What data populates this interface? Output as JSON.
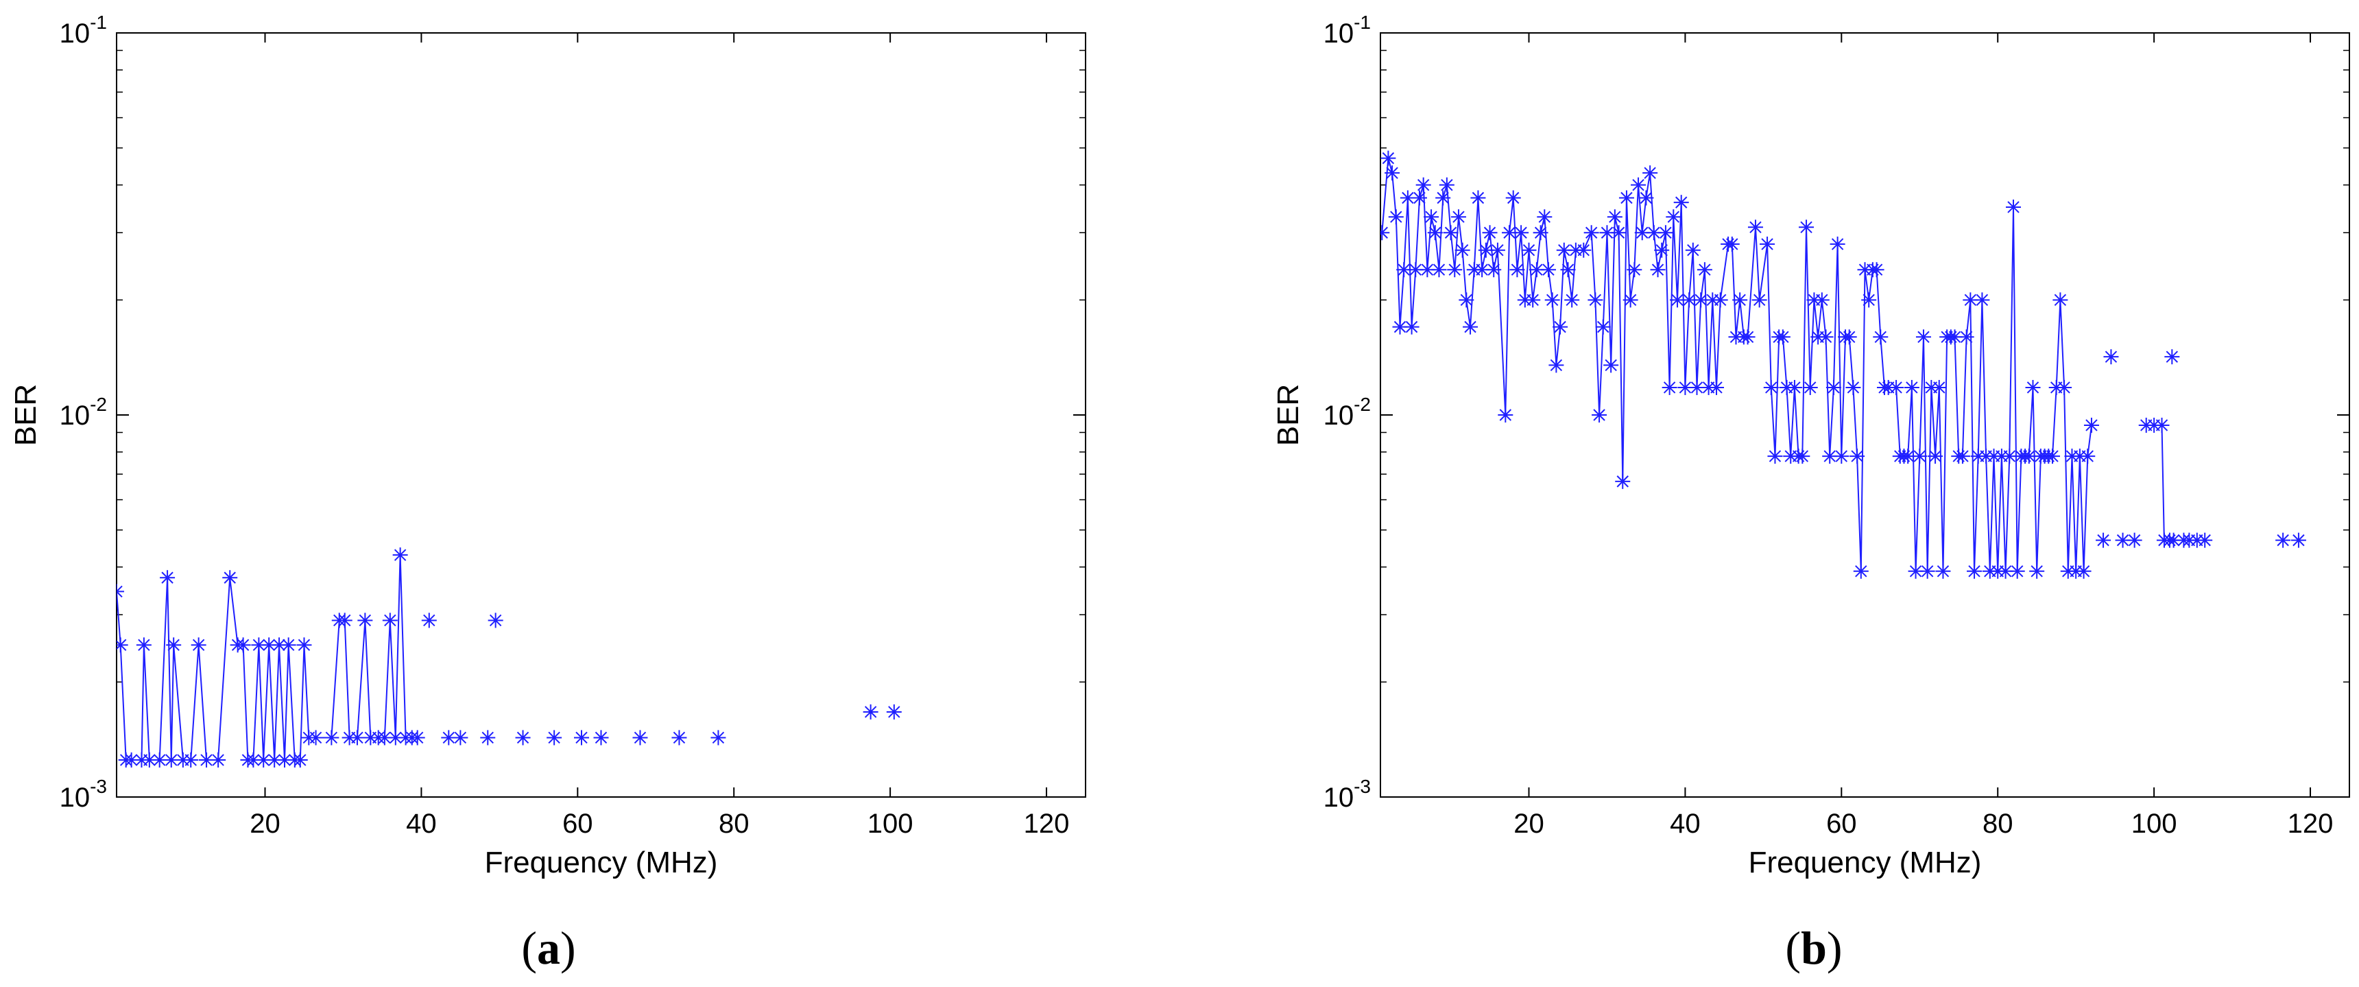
{
  "chart_data": [
    {
      "type": "line",
      "panel_label": "(a)",
      "xlabel": "Frequency (MHz)",
      "ylabel": "BER",
      "xlim": [
        1,
        125
      ],
      "ylim": [
        0.001,
        0.1
      ],
      "yscale": "log",
      "x_ticks": [
        20,
        40,
        60,
        80,
        100,
        120
      ],
      "x_tick_labels": [
        "20",
        "40",
        "60",
        "80",
        "100",
        "120"
      ],
      "y_ticks": [
        0.001,
        0.01,
        0.1
      ],
      "y_tick_labels": [
        [
          "10",
          "-3"
        ],
        [
          "10",
          "-2"
        ],
        [
          "10",
          "-1"
        ]
      ],
      "grid": false,
      "color": "#1f1fff",
      "marker": "asterisk",
      "points": [
        [
          1,
          0.00345
        ],
        [
          1.5,
          0.0025
        ],
        [
          2.2,
          0.00125
        ],
        [
          2.9,
          0.00125
        ],
        [
          4.2,
          0.00125
        ],
        [
          4.5,
          0.0025
        ],
        [
          5.2,
          0.00125
        ],
        [
          6.5,
          0.00125
        ],
        [
          7.5,
          0.00375
        ],
        [
          8,
          0.00125
        ],
        [
          8.3,
          0.0025
        ],
        [
          9.5,
          0.00125
        ],
        [
          10.5,
          0.00125
        ],
        [
          11.5,
          0.0025
        ],
        [
          12.5,
          0.00125
        ],
        [
          14,
          0.00125
        ],
        [
          15.5,
          0.00375
        ],
        [
          16.5,
          0.0025
        ],
        [
          17.2,
          0.0025
        ],
        [
          17.8,
          0.00125
        ],
        [
          18.5,
          0.00125
        ],
        [
          19.2,
          0.0025
        ],
        [
          19.8,
          0.00125
        ],
        [
          20.5,
          0.0025
        ],
        [
          21.2,
          0.00125
        ],
        [
          21.8,
          0.0025
        ],
        [
          22.5,
          0.00125
        ],
        [
          23,
          0.0025
        ],
        [
          23.8,
          0.00125
        ],
        [
          24.5,
          0.00125
        ],
        [
          25,
          0.0025
        ],
        [
          25.6,
          0.00143
        ],
        [
          26.5,
          0.00143
        ],
        [
          28.5,
          0.00143
        ],
        [
          29.5,
          0.0029
        ],
        [
          30.2,
          0.0029
        ],
        [
          30.8,
          0.00143
        ],
        [
          31.8,
          0.00143
        ],
        [
          32.8,
          0.0029
        ],
        [
          33.5,
          0.00143
        ],
        [
          34.5,
          0.00143
        ],
        [
          35.3,
          0.00143
        ],
        [
          36,
          0.0029
        ],
        [
          36.7,
          0.00143
        ],
        [
          37.3,
          0.0043
        ],
        [
          38,
          0.00143
        ],
        [
          38.8,
          0.00143
        ]
      ],
      "isolated_points": [
        [
          39.5,
          0.00143
        ],
        [
          41,
          0.0029
        ],
        [
          43.5,
          0.00143
        ],
        [
          45,
          0.00143
        ],
        [
          48.5,
          0.00143
        ],
        [
          49.5,
          0.0029
        ],
        [
          53,
          0.00143
        ],
        [
          57,
          0.00143
        ],
        [
          60.5,
          0.00143
        ],
        [
          63,
          0.00143
        ],
        [
          68,
          0.00143
        ],
        [
          73,
          0.00143
        ],
        [
          78,
          0.00143
        ],
        [
          97.5,
          0.00167
        ],
        [
          100.5,
          0.00167
        ]
      ]
    },
    {
      "type": "line",
      "panel_label": "(b)",
      "xlabel": "Frequency (MHz)",
      "ylabel": "BER",
      "xlim": [
        1,
        125
      ],
      "ylim": [
        0.001,
        0.1
      ],
      "yscale": "log",
      "x_ticks": [
        20,
        40,
        60,
        80,
        100,
        120
      ],
      "x_tick_labels": [
        "20",
        "40",
        "60",
        "80",
        "100",
        "120"
      ],
      "y_ticks": [
        0.001,
        0.01,
        0.1
      ],
      "y_tick_labels": [
        [
          "10",
          "-3"
        ],
        [
          "10",
          "-2"
        ],
        [
          "10",
          "-1"
        ]
      ],
      "grid": false,
      "color": "#1f1fff",
      "marker": "asterisk",
      "points": [
        [
          1.2,
          0.03
        ],
        [
          2,
          0.047
        ],
        [
          2.5,
          0.043
        ],
        [
          3,
          0.033
        ],
        [
          3.5,
          0.017
        ],
        [
          4,
          0.024
        ],
        [
          4.5,
          0.037
        ],
        [
          5,
          0.017
        ],
        [
          5.5,
          0.024
        ],
        [
          6,
          0.037
        ],
        [
          6.5,
          0.04
        ],
        [
          7,
          0.024
        ],
        [
          7.5,
          0.033
        ],
        [
          8,
          0.03
        ],
        [
          8.5,
          0.024
        ],
        [
          9,
          0.037
        ],
        [
          9.5,
          0.04
        ],
        [
          10,
          0.03
        ],
        [
          10.5,
          0.024
        ],
        [
          11,
          0.033
        ],
        [
          11.5,
          0.027
        ],
        [
          12,
          0.02
        ],
        [
          12.5,
          0.017
        ],
        [
          13,
          0.024
        ],
        [
          13.5,
          0.037
        ],
        [
          14,
          0.024
        ],
        [
          14.5,
          0.027
        ],
        [
          15,
          0.03
        ],
        [
          15.5,
          0.024
        ],
        [
          16,
          0.027
        ],
        [
          17,
          0.01
        ],
        [
          17.5,
          0.03
        ],
        [
          18,
          0.037
        ],
        [
          18.5,
          0.024
        ],
        [
          19,
          0.03
        ],
        [
          19.5,
          0.02
        ],
        [
          20,
          0.027
        ],
        [
          20.5,
          0.02
        ],
        [
          21,
          0.024
        ],
        [
          21.5,
          0.03
        ],
        [
          22,
          0.033
        ],
        [
          22.5,
          0.024
        ],
        [
          23,
          0.02
        ],
        [
          23.5,
          0.0135
        ],
        [
          24,
          0.017
        ],
        [
          24.5,
          0.027
        ],
        [
          25,
          0.024
        ],
        [
          25.5,
          0.02
        ],
        [
          26,
          0.027
        ],
        [
          27,
          0.027
        ],
        [
          28,
          0.03
        ],
        [
          28.5,
          0.02
        ],
        [
          29,
          0.01
        ],
        [
          29.5,
          0.017
        ],
        [
          30,
          0.03
        ],
        [
          30.5,
          0.0135
        ],
        [
          31,
          0.033
        ],
        [
          31.5,
          0.03
        ],
        [
          32,
          0.0067
        ],
        [
          32.5,
          0.037
        ],
        [
          33,
          0.02
        ],
        [
          33.5,
          0.024
        ],
        [
          34,
          0.04
        ],
        [
          34.5,
          0.03
        ],
        [
          35,
          0.037
        ],
        [
          35.5,
          0.043
        ],
        [
          36,
          0.03
        ],
        [
          36.5,
          0.024
        ],
        [
          37,
          0.027
        ],
        [
          37.5,
          0.03
        ],
        [
          38,
          0.0118
        ],
        [
          38.5,
          0.033
        ],
        [
          39,
          0.02
        ],
        [
          39.5,
          0.036
        ],
        [
          40,
          0.0118
        ],
        [
          40.5,
          0.02
        ],
        [
          41,
          0.027
        ],
        [
          41.5,
          0.0118
        ],
        [
          42,
          0.02
        ],
        [
          42.5,
          0.024
        ],
        [
          43,
          0.0118
        ],
        [
          43.5,
          0.02
        ],
        [
          44,
          0.0118
        ],
        [
          44.5,
          0.02
        ],
        [
          45.5,
          0.028
        ],
        [
          46,
          0.028
        ],
        [
          46.5,
          0.016
        ],
        [
          47,
          0.02
        ],
        [
          47.5,
          0.016
        ],
        [
          48,
          0.016
        ],
        [
          49,
          0.031
        ],
        [
          49.5,
          0.02
        ],
        [
          50.5,
          0.028
        ],
        [
          51,
          0.0118
        ],
        [
          51.5,
          0.0078
        ],
        [
          52,
          0.016
        ],
        [
          52.5,
          0.016
        ],
        [
          53,
          0.0118
        ],
        [
          53.5,
          0.0078
        ],
        [
          54,
          0.0118
        ],
        [
          54.5,
          0.0078
        ],
        [
          55,
          0.0078
        ],
        [
          55.5,
          0.031
        ],
        [
          56,
          0.0118
        ],
        [
          56.5,
          0.02
        ],
        [
          57,
          0.016
        ],
        [
          57.5,
          0.02
        ],
        [
          58,
          0.016
        ],
        [
          58.5,
          0.0078
        ],
        [
          59,
          0.0118
        ],
        [
          59.5,
          0.028
        ],
        [
          60,
          0.0078
        ],
        [
          60.5,
          0.016
        ],
        [
          61,
          0.016
        ],
        [
          61.5,
          0.0118
        ],
        [
          62,
          0.0078
        ],
        [
          62.5,
          0.0039
        ],
        [
          63,
          0.024
        ],
        [
          63.5,
          0.02
        ],
        [
          64,
          0.024
        ],
        [
          64.5,
          0.024
        ],
        [
          65,
          0.016
        ],
        [
          65.5,
          0.0118
        ],
        [
          66,
          0.0118
        ],
        [
          67,
          0.0118
        ],
        [
          67.5,
          0.0078
        ],
        [
          68,
          0.0078
        ],
        [
          68.5,
          0.0078
        ],
        [
          69,
          0.0118
        ],
        [
          69.5,
          0.0039
        ],
        [
          70,
          0.0078
        ],
        [
          70.5,
          0.016
        ],
        [
          71,
          0.0039
        ],
        [
          71.5,
          0.0118
        ],
        [
          72,
          0.0078
        ],
        [
          72.5,
          0.0118
        ],
        [
          73,
          0.0039
        ],
        [
          73.5,
          0.016
        ],
        [
          74,
          0.016
        ],
        [
          74.5,
          0.016
        ],
        [
          75,
          0.0078
        ],
        [
          75.5,
          0.0078
        ],
        [
          76,
          0.016
        ],
        [
          76.5,
          0.02
        ],
        [
          77,
          0.0039
        ],
        [
          77.5,
          0.0078
        ],
        [
          78,
          0.02
        ],
        [
          78.5,
          0.0078
        ],
        [
          79,
          0.0039
        ],
        [
          79.5,
          0.0078
        ],
        [
          80,
          0.0039
        ],
        [
          80.5,
          0.0078
        ],
        [
          81,
          0.0039
        ],
        [
          81.5,
          0.0078
        ],
        [
          82,
          0.035
        ],
        [
          82.5,
          0.0039
        ],
        [
          83,
          0.0078
        ],
        [
          83.5,
          0.0078
        ],
        [
          84,
          0.0078
        ],
        [
          84.5,
          0.0118
        ],
        [
          85,
          0.0039
        ],
        [
          85.5,
          0.0078
        ],
        [
          86,
          0.0078
        ],
        [
          86.5,
          0.0078
        ],
        [
          87,
          0.0078
        ],
        [
          87.5,
          0.0118
        ],
        [
          88,
          0.02
        ],
        [
          88.5,
          0.0118
        ],
        [
          89,
          0.0039
        ],
        [
          89.5,
          0.0078
        ],
        [
          90,
          0.0039
        ],
        [
          90.5,
          0.0078
        ],
        [
          91,
          0.0039
        ],
        [
          91.5,
          0.0078
        ],
        [
          92,
          0.0094
        ]
      ],
      "segments": [
        [
          [
            99,
            0.0094
          ],
          [
            100,
            0.0094
          ],
          [
            101,
            0.0094
          ],
          [
            101.3,
            0.0047
          ],
          [
            102,
            0.0047
          ],
          [
            102.5,
            0.0047
          ]
        ]
      ],
      "isolated_points": [
        [
          93.5,
          0.0047
        ],
        [
          94.5,
          0.0142
        ],
        [
          96,
          0.0047
        ],
        [
          97.5,
          0.0047
        ],
        [
          102.3,
          0.0142
        ],
        [
          103.8,
          0.0047
        ],
        [
          104.5,
          0.0047
        ],
        [
          105.5,
          0.0047
        ],
        [
          106.5,
          0.0047
        ],
        [
          116.5,
          0.0047
        ],
        [
          118.5,
          0.0047
        ]
      ]
    }
  ]
}
